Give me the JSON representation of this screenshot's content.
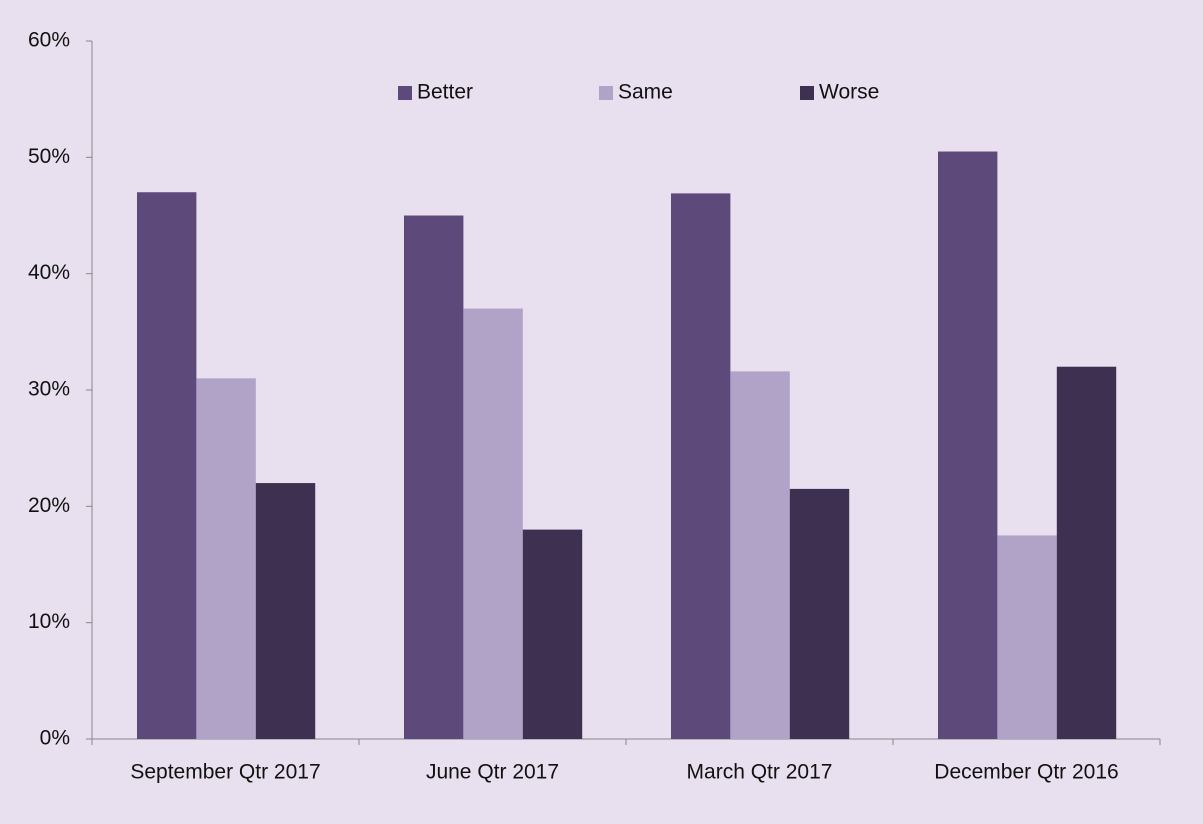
{
  "chart_data": {
    "type": "bar",
    "categories": [
      "September Qtr 2017",
      "June Qtr 2017",
      "March Qtr 2017",
      "December Qtr 2016"
    ],
    "series": [
      {
        "name": "Better",
        "color": "#5e4a7a",
        "values": [
          47,
          45,
          46.9,
          50.5
        ]
      },
      {
        "name": "Same",
        "color": "#b1a2c8",
        "values": [
          31,
          37,
          31.6,
          17.5
        ]
      },
      {
        "name": "Worse",
        "color": "#3e3050",
        "values": [
          22,
          18,
          21.5,
          32
        ]
      }
    ],
    "ylim": [
      0,
      60
    ],
    "yticks": [
      {
        "value": 0,
        "label": "0%"
      },
      {
        "value": 10,
        "label": "10%"
      },
      {
        "value": 20,
        "label": "20%"
      },
      {
        "value": 30,
        "label": "30%"
      },
      {
        "value": 40,
        "label": "40%"
      },
      {
        "value": 50,
        "label": "50%"
      },
      {
        "value": 60,
        "label": "60%"
      }
    ],
    "legend": "top",
    "grid": false
  }
}
